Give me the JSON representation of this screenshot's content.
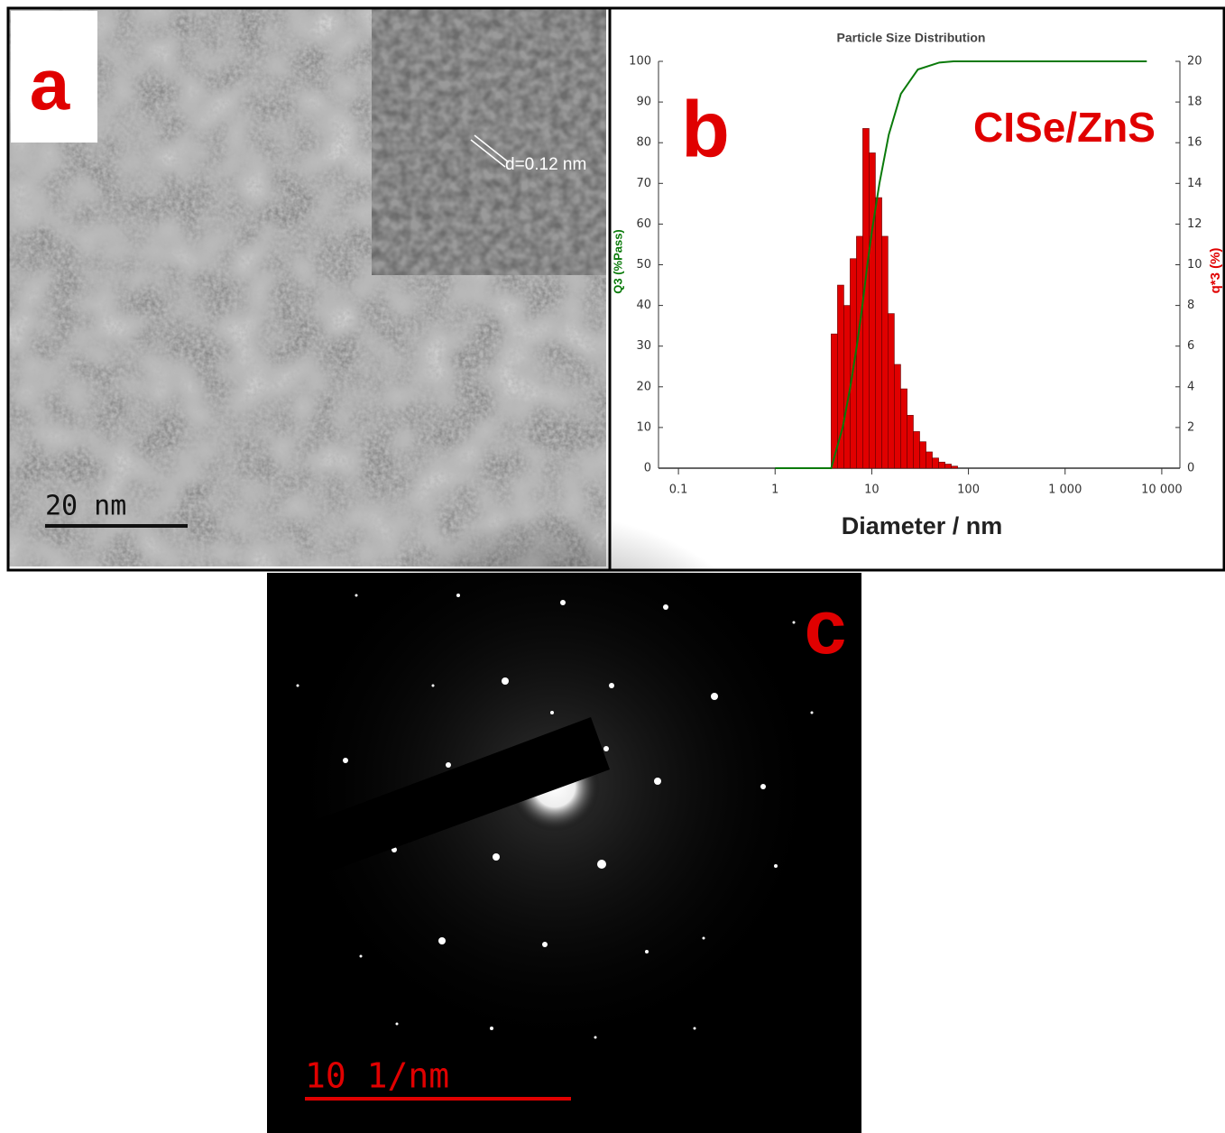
{
  "panels": {
    "a": {
      "label": "a",
      "scale_bar": "20 nm",
      "inset_annotation": "d=0.12 nm"
    },
    "c": {
      "label": "c",
      "scale_bar": "10 1/nm"
    }
  },
  "chart_data": {
    "type": "histogram",
    "panel_label": "b",
    "title": "Particle Size Distribution",
    "annotation": "CISe/ZnS",
    "xlabel": "Diameter / nm",
    "ylabel": "Q3 (%Pass)",
    "y2label": "q*3 (%)",
    "log_x": true,
    "xlim": [
      0.0622,
      15400
    ],
    "xticks": [
      0.1,
      1,
      10,
      100,
      {
        "value": 1000,
        "label": "1 000"
      },
      {
        "value": 10000,
        "label": "10 000"
      }
    ],
    "ylim": [
      0,
      100
    ],
    "yticks": [
      0,
      10,
      20,
      30,
      40,
      50,
      60,
      70,
      80,
      90,
      100
    ],
    "y2lim": [
      0,
      20
    ],
    "y2ticks": [
      0,
      2,
      4,
      6,
      8,
      10,
      12,
      14,
      16,
      18,
      20
    ],
    "bins": [
      3.8,
      4.42,
      5.14,
      5.97,
      6.94,
      8.07,
      9.38,
      10.9,
      12.7,
      14.7,
      17.1,
      19.9,
      23.2,
      26.9,
      31.3,
      36.4,
      42.3,
      49.2,
      57.2,
      66.5,
      77.3
    ],
    "values": [
      6.6,
      9.0,
      8.0,
      10.3,
      11.4,
      16.7,
      15.5,
      13.3,
      11.4,
      7.6,
      5.1,
      3.9,
      2.6,
      1.8,
      1.3,
      0.8,
      0.5,
      0.3,
      0.2,
      0.1
    ],
    "axis": "y2",
    "color": "#e00000",
    "cumulative": {
      "type": "line",
      "color": "#0a7a0a",
      "x": [
        1,
        3.8,
        5,
        6,
        7,
        8,
        9,
        10,
        12,
        15,
        20,
        30,
        50,
        70,
        7000
      ],
      "values": [
        0,
        0,
        10,
        20,
        30,
        40,
        50,
        58,
        70,
        82,
        92,
        98,
        99.7,
        100,
        100
      ]
    }
  }
}
